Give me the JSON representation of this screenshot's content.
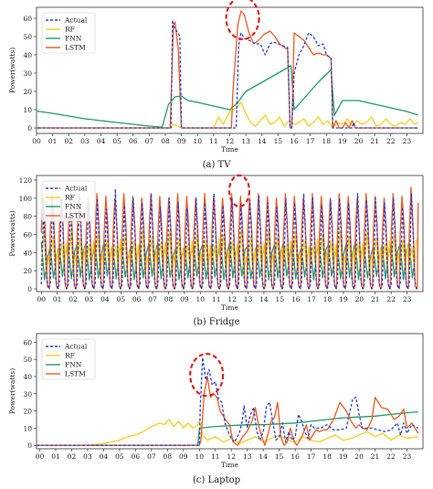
{
  "figure": {
    "panels": [
      {
        "id": "tv",
        "caption": "(a) TV",
        "xlabel": "Time",
        "ylabel": "Power(watts)"
      },
      {
        "id": "fridge",
        "caption": "(b) Fridge",
        "xlabel": "Time",
        "ylabel": "Power(watts)"
      },
      {
        "id": "laptop",
        "caption": "(c) Laptop",
        "xlabel": "Time",
        "ylabel": "Power(watts)"
      }
    ]
  },
  "colors": {
    "Actual": "#2b3fd6",
    "RF": "#f4d01b",
    "FNN": "#1f9d6b",
    "LSTM": "#ee5a1f",
    "highlight": "#e02020"
  },
  "chart_data": [
    {
      "type": "line",
      "title": "",
      "caption": "(a) TV",
      "xlabel": "Time",
      "ylabel": "Power(watts)",
      "categories": [
        "00",
        "01",
        "02",
        "03",
        "04",
        "05",
        "06",
        "07",
        "08",
        "09",
        "10",
        "11",
        "12",
        "13",
        "14",
        "15",
        "16",
        "17",
        "18",
        "19",
        "20",
        "21",
        "22",
        "23"
      ],
      "xlim": [
        0,
        24
      ],
      "ylim": [
        -3,
        66
      ],
      "yticks": [
        0,
        10,
        20,
        30,
        40,
        50,
        60
      ],
      "legend": "top-left",
      "highlight_near": [
        12.8,
        60
      ],
      "series": [
        {
          "name": "Actual",
          "dash": true,
          "x": [
            -0.2,
            8.35,
            8.45,
            8.5,
            8.9,
            9.0,
            9.05,
            12.4,
            12.55,
            12.7,
            12.9,
            13.2,
            13.6,
            13.9,
            14.2,
            14.5,
            14.7,
            15.0,
            15.3,
            15.6,
            15.75,
            15.85,
            16.0,
            16.3,
            16.6,
            16.9,
            17.2,
            17.5,
            17.8,
            18.0,
            18.3,
            18.4,
            18.55,
            19.6,
            19.7,
            19.8,
            20.0,
            23.7
          ],
          "y": [
            0,
            0,
            59,
            56,
            50,
            0,
            0,
            0,
            45,
            52,
            49,
            48,
            46,
            46,
            40,
            46,
            47,
            46,
            45,
            44,
            0,
            0,
            30,
            40,
            45,
            52,
            50,
            45,
            46,
            40,
            38,
            0,
            0,
            0,
            3,
            0,
            0,
            0
          ]
        },
        {
          "name": "RF",
          "x": [
            -0.2,
            8.3,
            8.5,
            9.0,
            9.5,
            10.0,
            11.0,
            11.3,
            11.6,
            12.0,
            12.4,
            12.7,
            13.0,
            13.3,
            13.6,
            13.9,
            14.2,
            14.5,
            14.8,
            15.1,
            15.4,
            15.7,
            16.0,
            16.3,
            16.6,
            16.9,
            17.2,
            17.5,
            17.8,
            18.1,
            18.4,
            18.7,
            19.0,
            19.3,
            19.6,
            19.9,
            20.2,
            20.5,
            20.8,
            21.1,
            21.4,
            21.7,
            22.0,
            22.3,
            22.6,
            22.9,
            23.2,
            23.5,
            23.7
          ],
          "y": [
            0,
            0,
            2,
            0,
            0,
            0,
            0,
            6,
            2,
            9,
            11,
            14,
            8,
            3,
            1,
            4,
            7,
            2,
            3,
            6,
            1,
            4,
            2,
            3,
            5,
            1,
            3,
            6,
            2,
            4,
            0,
            3,
            2,
            5,
            1,
            4,
            2,
            3,
            6,
            1,
            2,
            5,
            2,
            1,
            3,
            2,
            5,
            2,
            3
          ]
        },
        {
          "name": "FNN",
          "x": [
            -0.2,
            1,
            2,
            3,
            4,
            5,
            6,
            7,
            7.8,
            8.2,
            8.6,
            9.0,
            9.4,
            10,
            10.5,
            11,
            11.5,
            12,
            12.5,
            13,
            14,
            15,
            15.8,
            16.0,
            16.5,
            17,
            17.5,
            18.3,
            18.5,
            19.0,
            20,
            21,
            22,
            23,
            23.7
          ],
          "y": [
            9.5,
            8,
            6.5,
            5,
            4,
            3,
            2,
            1,
            0.5,
            13,
            17,
            17.5,
            15,
            14,
            13,
            12,
            11,
            10,
            14,
            20,
            25,
            30,
            34,
            10,
            15,
            20,
            25,
            32,
            7,
            15,
            15,
            13,
            11,
            9,
            7
          ]
        },
        {
          "name": "LSTM",
          "x": [
            -0.2,
            8.3,
            8.5,
            8.6,
            8.8,
            9.0,
            9.1,
            12.1,
            12.2,
            12.5,
            12.7,
            12.9,
            13.2,
            13.5,
            13.8,
            14.1,
            14.5,
            14.8,
            15.1,
            15.4,
            15.6,
            15.75,
            15.85,
            16.0,
            16.3,
            16.6,
            16.9,
            17.2,
            17.5,
            17.8,
            18.0,
            18.3,
            18.4,
            18.6,
            18.8,
            19.0,
            19.2,
            19.4,
            19.6,
            19.8,
            20.0,
            23.7
          ],
          "y": [
            0,
            0,
            56,
            58,
            43,
            0,
            0,
            0,
            20,
            56,
            64,
            62,
            52,
            46,
            48,
            51,
            53,
            50,
            46,
            44,
            43,
            0,
            0,
            52,
            50,
            48,
            44,
            40,
            41,
            40,
            40,
            38,
            0,
            4,
            0,
            0,
            3,
            0,
            4,
            0,
            0,
            0
          ]
        }
      ]
    },
    {
      "type": "line",
      "title": "",
      "caption": "(b) Fridge",
      "xlabel": "Time",
      "ylabel": "Power(watts)",
      "categories": [
        "00",
        "01",
        "02",
        "03",
        "04",
        "05",
        "06",
        "07",
        "08",
        "09",
        "10",
        "11",
        "12",
        "13",
        "14",
        "15",
        "16",
        "17",
        "18",
        "19",
        "20",
        "21",
        "22",
        "23"
      ],
      "xlim": [
        -0.3,
        24
      ],
      "ylim": [
        -3,
        125
      ],
      "yticks": [
        0,
        20,
        40,
        60,
        80,
        100,
        120
      ],
      "legend": "top-left",
      "highlight_near": [
        12.45,
        108
      ],
      "cycle_period_hours": 0.57,
      "series": [
        {
          "name": "Actual",
          "dash": true,
          "peaks": [
            85,
            95,
            100,
            90,
            105,
            95,
            100,
            88,
            110,
            92,
            100,
            95,
            105,
            90,
            100,
            95,
            88,
            100,
            95,
            105,
            92,
            100,
            95,
            98,
            102,
            95,
            90,
            100,
            95,
            105,
            100,
            92,
            98,
            100,
            95,
            105,
            98,
            100,
            95,
            100,
            90,
            105
          ]
        },
        {
          "name": "RF",
          "levels": [
            20,
            65
          ]
        },
        {
          "name": "FNN",
          "levels": [
            10,
            52
          ]
        },
        {
          "name": "LSTM",
          "peaks": [
            100,
            105,
            100,
            105,
            102,
            100,
            105,
            102,
            100,
            105,
            102,
            100,
            105,
            102,
            100,
            105,
            102,
            100,
            105,
            102,
            100,
            105,
            102,
            100,
            105,
            102,
            100,
            105,
            102,
            100,
            105,
            102,
            100,
            105,
            102,
            100,
            105,
            102,
            100,
            105,
            102,
            112
          ]
        }
      ]
    },
    {
      "type": "line",
      "title": "",
      "caption": "(c) Laptop",
      "xlabel": "Time",
      "ylabel": "Power(watts)",
      "categories": [
        "00",
        "01",
        "02",
        "03",
        "04",
        "05",
        "06",
        "07",
        "08",
        "09",
        "10",
        "11",
        "12",
        "13",
        "14",
        "15",
        "16",
        "17",
        "18",
        "19",
        "20",
        "21",
        "22",
        "23"
      ],
      "xlim": [
        -0.2,
        24
      ],
      "ylim": [
        -2,
        65
      ],
      "yticks": [
        0,
        10,
        20,
        30,
        40,
        50,
        60
      ],
      "legend": "top-left",
      "highlight_near": [
        10.45,
        41
      ],
      "series": [
        {
          "name": "Actual",
          "dash": true,
          "x": [
            -0.2,
            10.0,
            10.05,
            10.2,
            10.4,
            10.6,
            10.8,
            11.0,
            11.2,
            11.4,
            11.6,
            11.8,
            12.0,
            12.2,
            12.5,
            12.7,
            12.8,
            13.0,
            13.2,
            13.4,
            13.6,
            13.8,
            14.0,
            14.2,
            14.4,
            14.6,
            14.8,
            15.0,
            15.2,
            15.4,
            15.6,
            15.8,
            16.0,
            16.2,
            16.4,
            16.6,
            16.8,
            17.0,
            17.2,
            17.6,
            18.0,
            18.4,
            18.8,
            19.2,
            19.6,
            19.8,
            20.0,
            20.2,
            20.4,
            20.8,
            21.2,
            21.6,
            22.0,
            22.4,
            22.6,
            22.8,
            23.0,
            23.3,
            23.7
          ],
          "y": [
            0,
            0,
            22,
            51,
            38,
            44,
            35,
            37,
            27,
            25,
            13,
            8,
            4,
            2,
            7,
            15,
            23,
            10,
            18,
            22,
            8,
            3,
            8,
            23,
            25,
            13,
            3,
            5,
            13,
            2,
            8,
            3,
            5,
            18,
            14,
            8,
            4,
            12,
            10,
            10,
            12,
            9,
            9,
            10,
            27,
            28,
            18,
            10,
            10,
            10,
            9,
            8,
            9,
            13,
            6,
            13,
            7,
            12,
            10
          ]
        },
        {
          "name": "RF",
          "x": [
            -0.2,
            3,
            4,
            4.5,
            5,
            5.5,
            6,
            6.5,
            7,
            7.5,
            7.8,
            8.1,
            8.4,
            8.7,
            9.0,
            9.3,
            9.6,
            9.9,
            10.0,
            10.2,
            10.5,
            11,
            11.5,
            12,
            12.5,
            13,
            13.5,
            14,
            14.5,
            15,
            15.5,
            16,
            16.5,
            17,
            17.5,
            18,
            18.5,
            19,
            19.5,
            20,
            20.5,
            21,
            21.5,
            22,
            22.5,
            23,
            23.7
          ],
          "y": [
            0,
            0,
            1,
            2,
            3,
            5,
            6,
            8,
            11,
            13,
            12,
            15,
            11,
            14,
            10,
            13,
            10,
            12,
            14,
            6,
            3,
            5,
            2,
            4,
            1,
            3,
            5,
            2,
            4,
            6,
            3,
            2,
            5,
            3,
            2,
            4,
            6,
            3,
            4,
            6,
            8,
            5,
            7,
            3,
            6,
            4,
            5
          ]
        },
        {
          "name": "FNN",
          "x": [
            -0.2,
            9.9,
            10.0,
            11,
            12,
            13,
            14,
            15,
            16,
            17,
            18,
            19,
            20,
            21,
            22,
            23,
            23.7
          ],
          "y": [
            0,
            0,
            10,
            11,
            11.5,
            12,
            12,
            12.5,
            13,
            14,
            15,
            16,
            16.5,
            17,
            18,
            19,
            19.5
          ]
        },
        {
          "name": "LSTM",
          "x": [
            -0.2,
            10.0,
            10.1,
            10.3,
            10.5,
            10.7,
            10.9,
            11.1,
            11.3,
            11.5,
            11.7,
            11.9,
            12.1,
            12.4,
            12.7,
            12.9,
            13.1,
            13.3,
            13.5,
            13.7,
            13.9,
            14.1,
            14.3,
            14.5,
            14.7,
            14.9,
            15.1,
            15.3,
            15.5,
            15.7,
            15.9,
            16.1,
            16.3,
            16.5,
            16.7,
            16.9,
            17.1,
            17.3,
            17.5,
            17.8,
            18.0,
            18.4,
            18.8,
            19.2,
            19.5,
            19.8,
            20.0,
            20.2,
            20.5,
            20.8,
            21.0,
            21.4,
            21.8,
            22.2,
            22.5,
            22.8,
            23.0,
            23.3,
            23.7
          ],
          "y": [
            0,
            0,
            3,
            30,
            40,
            28,
            30,
            28,
            20,
            17,
            14,
            12,
            2,
            0,
            5,
            7,
            10,
            14,
            22,
            12,
            5,
            0,
            7,
            14,
            16,
            25,
            5,
            0,
            2,
            10,
            3,
            0,
            3,
            7,
            12,
            3,
            6,
            9,
            8,
            9,
            9,
            15,
            25,
            20,
            14,
            10,
            12,
            10,
            9,
            15,
            28,
            22,
            21,
            15,
            17,
            21,
            10,
            13,
            7
          ]
        }
      ]
    }
  ]
}
